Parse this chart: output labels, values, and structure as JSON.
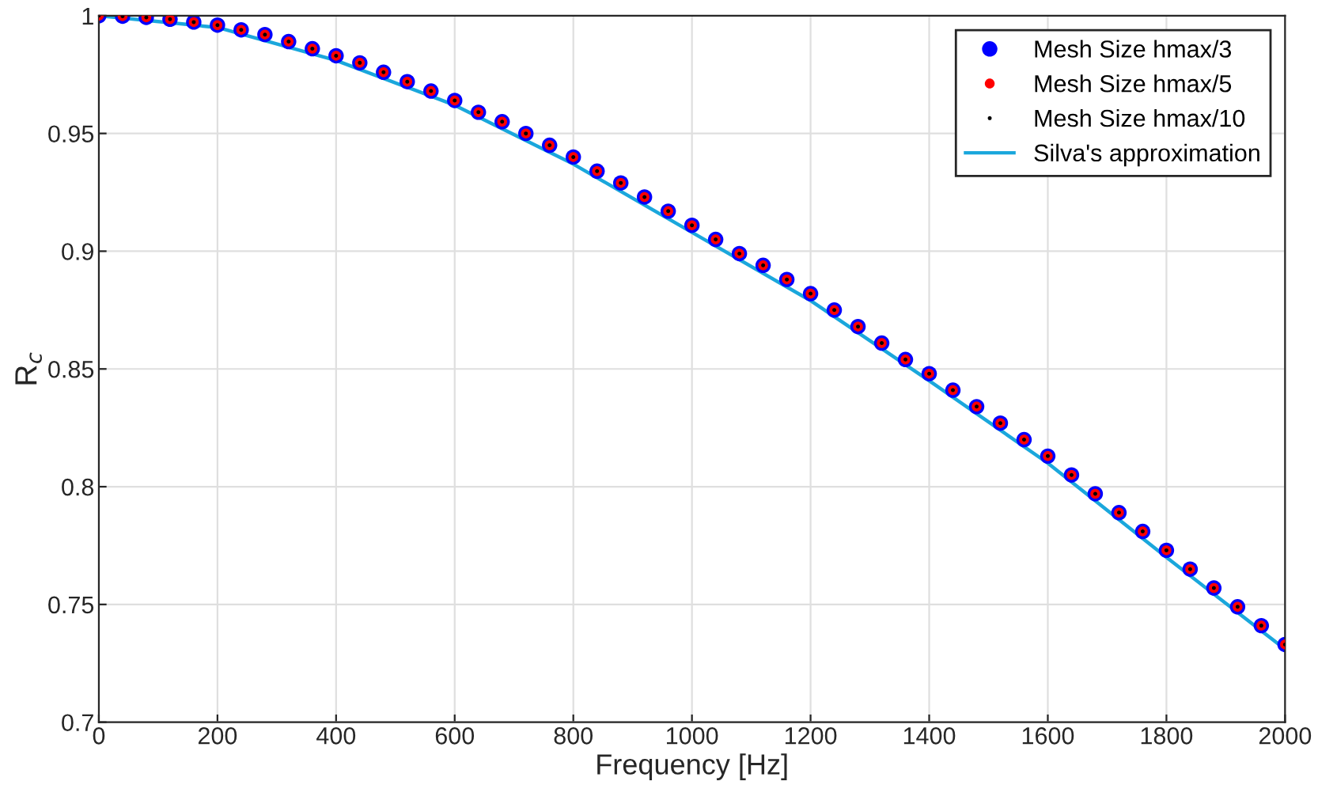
{
  "chart_data": {
    "type": "scatter",
    "xlabel": "Frequency [Hz]",
    "ylabel": "R$_{c}$",
    "xlim": [
      0,
      2000
    ],
    "ylim": [
      0.7,
      1
    ],
    "xticks": [
      0,
      200,
      400,
      600,
      800,
      1000,
      1200,
      1400,
      1600,
      1800,
      2000
    ],
    "yticks": [
      0.7,
      0.75,
      0.8,
      0.85,
      0.9,
      0.95,
      1
    ],
    "grid": true,
    "legend": "top right",
    "marker": "circle",
    "x": [
      0,
      40,
      80,
      120,
      160,
      200,
      240,
      280,
      320,
      360,
      400,
      440,
      480,
      520,
      560,
      600,
      640,
      680,
      720,
      760,
      800,
      840,
      880,
      920,
      960,
      1000,
      1040,
      1080,
      1120,
      1160,
      1200,
      1240,
      1280,
      1320,
      1360,
      1400,
      1440,
      1480,
      1520,
      1560,
      1600,
      1640,
      1680,
      1720,
      1760,
      1800,
      1840,
      1880,
      1920,
      1960,
      2000
    ],
    "series": [
      {
        "name": "Mesh Size hmax/3",
        "color": "#0000ff",
        "values": [
          1.0,
          0.9998,
          0.9993,
          0.9985,
          0.9973,
          0.996,
          0.994,
          0.992,
          0.989,
          0.986,
          0.983,
          0.98,
          0.976,
          0.972,
          0.968,
          0.964,
          0.959,
          0.955,
          0.95,
          0.945,
          0.94,
          0.934,
          0.929,
          0.923,
          0.917,
          0.911,
          0.905,
          0.899,
          0.894,
          0.888,
          0.882,
          0.875,
          0.868,
          0.861,
          0.854,
          0.848,
          0.841,
          0.834,
          0.827,
          0.82,
          0.813,
          0.805,
          0.797,
          0.789,
          0.781,
          0.773,
          0.765,
          0.757,
          0.749,
          0.741,
          0.733
        ]
      },
      {
        "name": "Mesh Size hmax/5",
        "color": "#ff0000",
        "values": [
          1.0,
          0.9998,
          0.9993,
          0.9985,
          0.9973,
          0.996,
          0.994,
          0.992,
          0.989,
          0.986,
          0.983,
          0.98,
          0.976,
          0.972,
          0.968,
          0.964,
          0.959,
          0.955,
          0.95,
          0.945,
          0.94,
          0.934,
          0.929,
          0.923,
          0.917,
          0.911,
          0.905,
          0.899,
          0.894,
          0.888,
          0.882,
          0.875,
          0.868,
          0.861,
          0.854,
          0.848,
          0.841,
          0.834,
          0.827,
          0.82,
          0.813,
          0.805,
          0.797,
          0.789,
          0.781,
          0.773,
          0.765,
          0.757,
          0.749,
          0.741,
          0.733
        ]
      },
      {
        "name": "Mesh Size hmax/10",
        "color": "#000000",
        "values": [
          1.0,
          0.9998,
          0.9993,
          0.9985,
          0.9973,
          0.996,
          0.994,
          0.992,
          0.989,
          0.986,
          0.983,
          0.98,
          0.976,
          0.972,
          0.968,
          0.964,
          0.959,
          0.955,
          0.95,
          0.945,
          0.94,
          0.934,
          0.929,
          0.923,
          0.917,
          0.911,
          0.905,
          0.899,
          0.894,
          0.888,
          0.882,
          0.875,
          0.868,
          0.861,
          0.854,
          0.848,
          0.841,
          0.834,
          0.827,
          0.82,
          0.813,
          0.805,
          0.797,
          0.789,
          0.781,
          0.773,
          0.765,
          0.757,
          0.749,
          0.741,
          0.733
        ]
      },
      {
        "name": "Silva's approximation",
        "type": "line",
        "line_style": "solid",
        "marker": "none",
        "color": "#1aa7dc",
        "x": [
          0,
          200,
          400,
          600,
          800,
          1000,
          1200,
          1400,
          1600,
          1800,
          2000
        ],
        "values": [
          1.0,
          0.995,
          0.981,
          0.962,
          0.937,
          0.908,
          0.879,
          0.845,
          0.81,
          0.77,
          0.731
        ]
      }
    ]
  }
}
